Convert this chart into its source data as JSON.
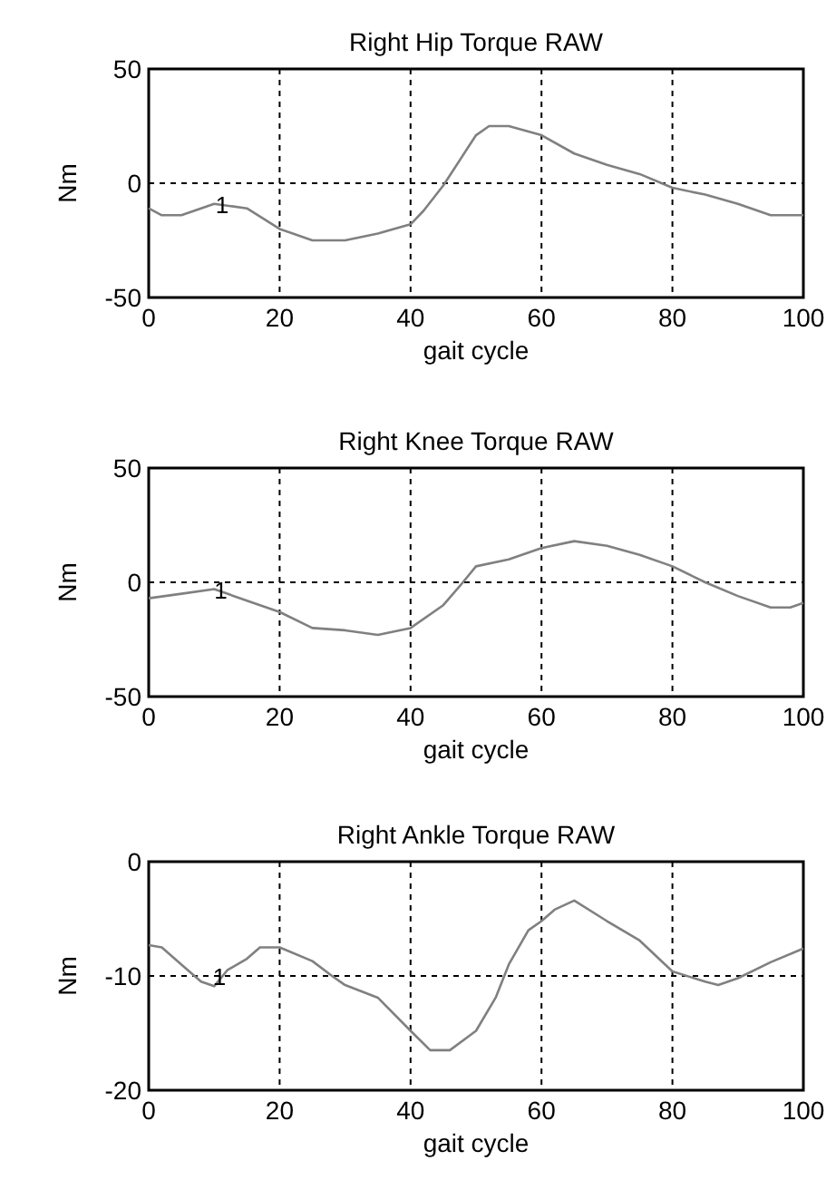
{
  "chart_data": [
    {
      "type": "line",
      "title": "Right Hip Torque RAW",
      "xlabel": "gait cycle",
      "ylabel": "Nm",
      "xlim": [
        0,
        100
      ],
      "ylim": [
        -50,
        50
      ],
      "xticks": [
        0,
        20,
        40,
        60,
        80,
        100
      ],
      "yticks": [
        -50,
        0,
        50
      ],
      "grid": true,
      "annotations": [
        {
          "text": "1",
          "x": 11.2,
          "y": -9
        }
      ],
      "series": [
        {
          "color": "#808080",
          "x": [
            0,
            2,
            5,
            10,
            15,
            20,
            25,
            30,
            35,
            40,
            42,
            45,
            50,
            52,
            55,
            60,
            65,
            70,
            75,
            80,
            85,
            90,
            95,
            100
          ],
          "values": [
            -11,
            -14,
            -14,
            -9,
            -11,
            -20,
            -25,
            -25,
            -22,
            -18,
            -12,
            -1,
            21,
            25,
            25,
            21,
            13,
            8,
            4,
            -2,
            -5,
            -9,
            -14,
            -14
          ]
        }
      ]
    },
    {
      "type": "line",
      "title": "Right Knee Torque RAW",
      "xlabel": "gait cycle",
      "ylabel": "Nm",
      "xlim": [
        0,
        100
      ],
      "ylim": [
        -50,
        50
      ],
      "xticks": [
        0,
        20,
        40,
        60,
        80,
        100
      ],
      "yticks": [
        -50,
        0,
        50
      ],
      "grid": true,
      "annotations": [
        {
          "text": "1",
          "x": 11,
          "y": -3
        }
      ],
      "series": [
        {
          "color": "#808080",
          "x": [
            0,
            5,
            10,
            15,
            20,
            25,
            30,
            35,
            40,
            45,
            48,
            50,
            55,
            60,
            65,
            70,
            75,
            80,
            85,
            90,
            95,
            98,
            100
          ],
          "values": [
            -7,
            -5,
            -3,
            -8,
            -13,
            -20,
            -21,
            -23,
            -20,
            -10,
            0,
            7,
            10,
            15,
            18,
            16,
            12,
            7,
            0,
            -6,
            -11,
            -11,
            -9
          ]
        }
      ]
    },
    {
      "type": "line",
      "title": "Right Ankle Torque RAW",
      "xlabel": "gait cycle",
      "ylabel": "Nm",
      "xlim": [
        0,
        100
      ],
      "ylim": [
        -20,
        0
      ],
      "xticks": [
        0,
        20,
        40,
        60,
        80,
        100
      ],
      "yticks": [
        -20,
        -10,
        0
      ],
      "grid": true,
      "annotations": [
        {
          "text": "1",
          "x": 10.8,
          "y": -10
        }
      ],
      "series": [
        {
          "color": "#808080",
          "x": [
            0,
            2,
            5,
            8,
            10,
            12,
            15,
            17,
            20,
            25,
            28,
            30,
            35,
            40,
            43,
            46,
            50,
            53,
            55,
            58,
            60,
            62,
            65,
            70,
            75,
            80,
            85,
            87,
            90,
            95,
            100
          ],
          "values": [
            -7.3,
            -7.5,
            -9,
            -10.5,
            -10.9,
            -9.5,
            -8.5,
            -7.5,
            -7.5,
            -8.7,
            -10,
            -10.8,
            -11.9,
            -14.8,
            -16.5,
            -16.5,
            -14.8,
            -11.9,
            -9,
            -6,
            -5.2,
            -4.2,
            -3.4,
            -5.2,
            -6.9,
            -9.6,
            -10.5,
            -10.8,
            -10.2,
            -8.8,
            -7.6
          ]
        }
      ]
    }
  ]
}
